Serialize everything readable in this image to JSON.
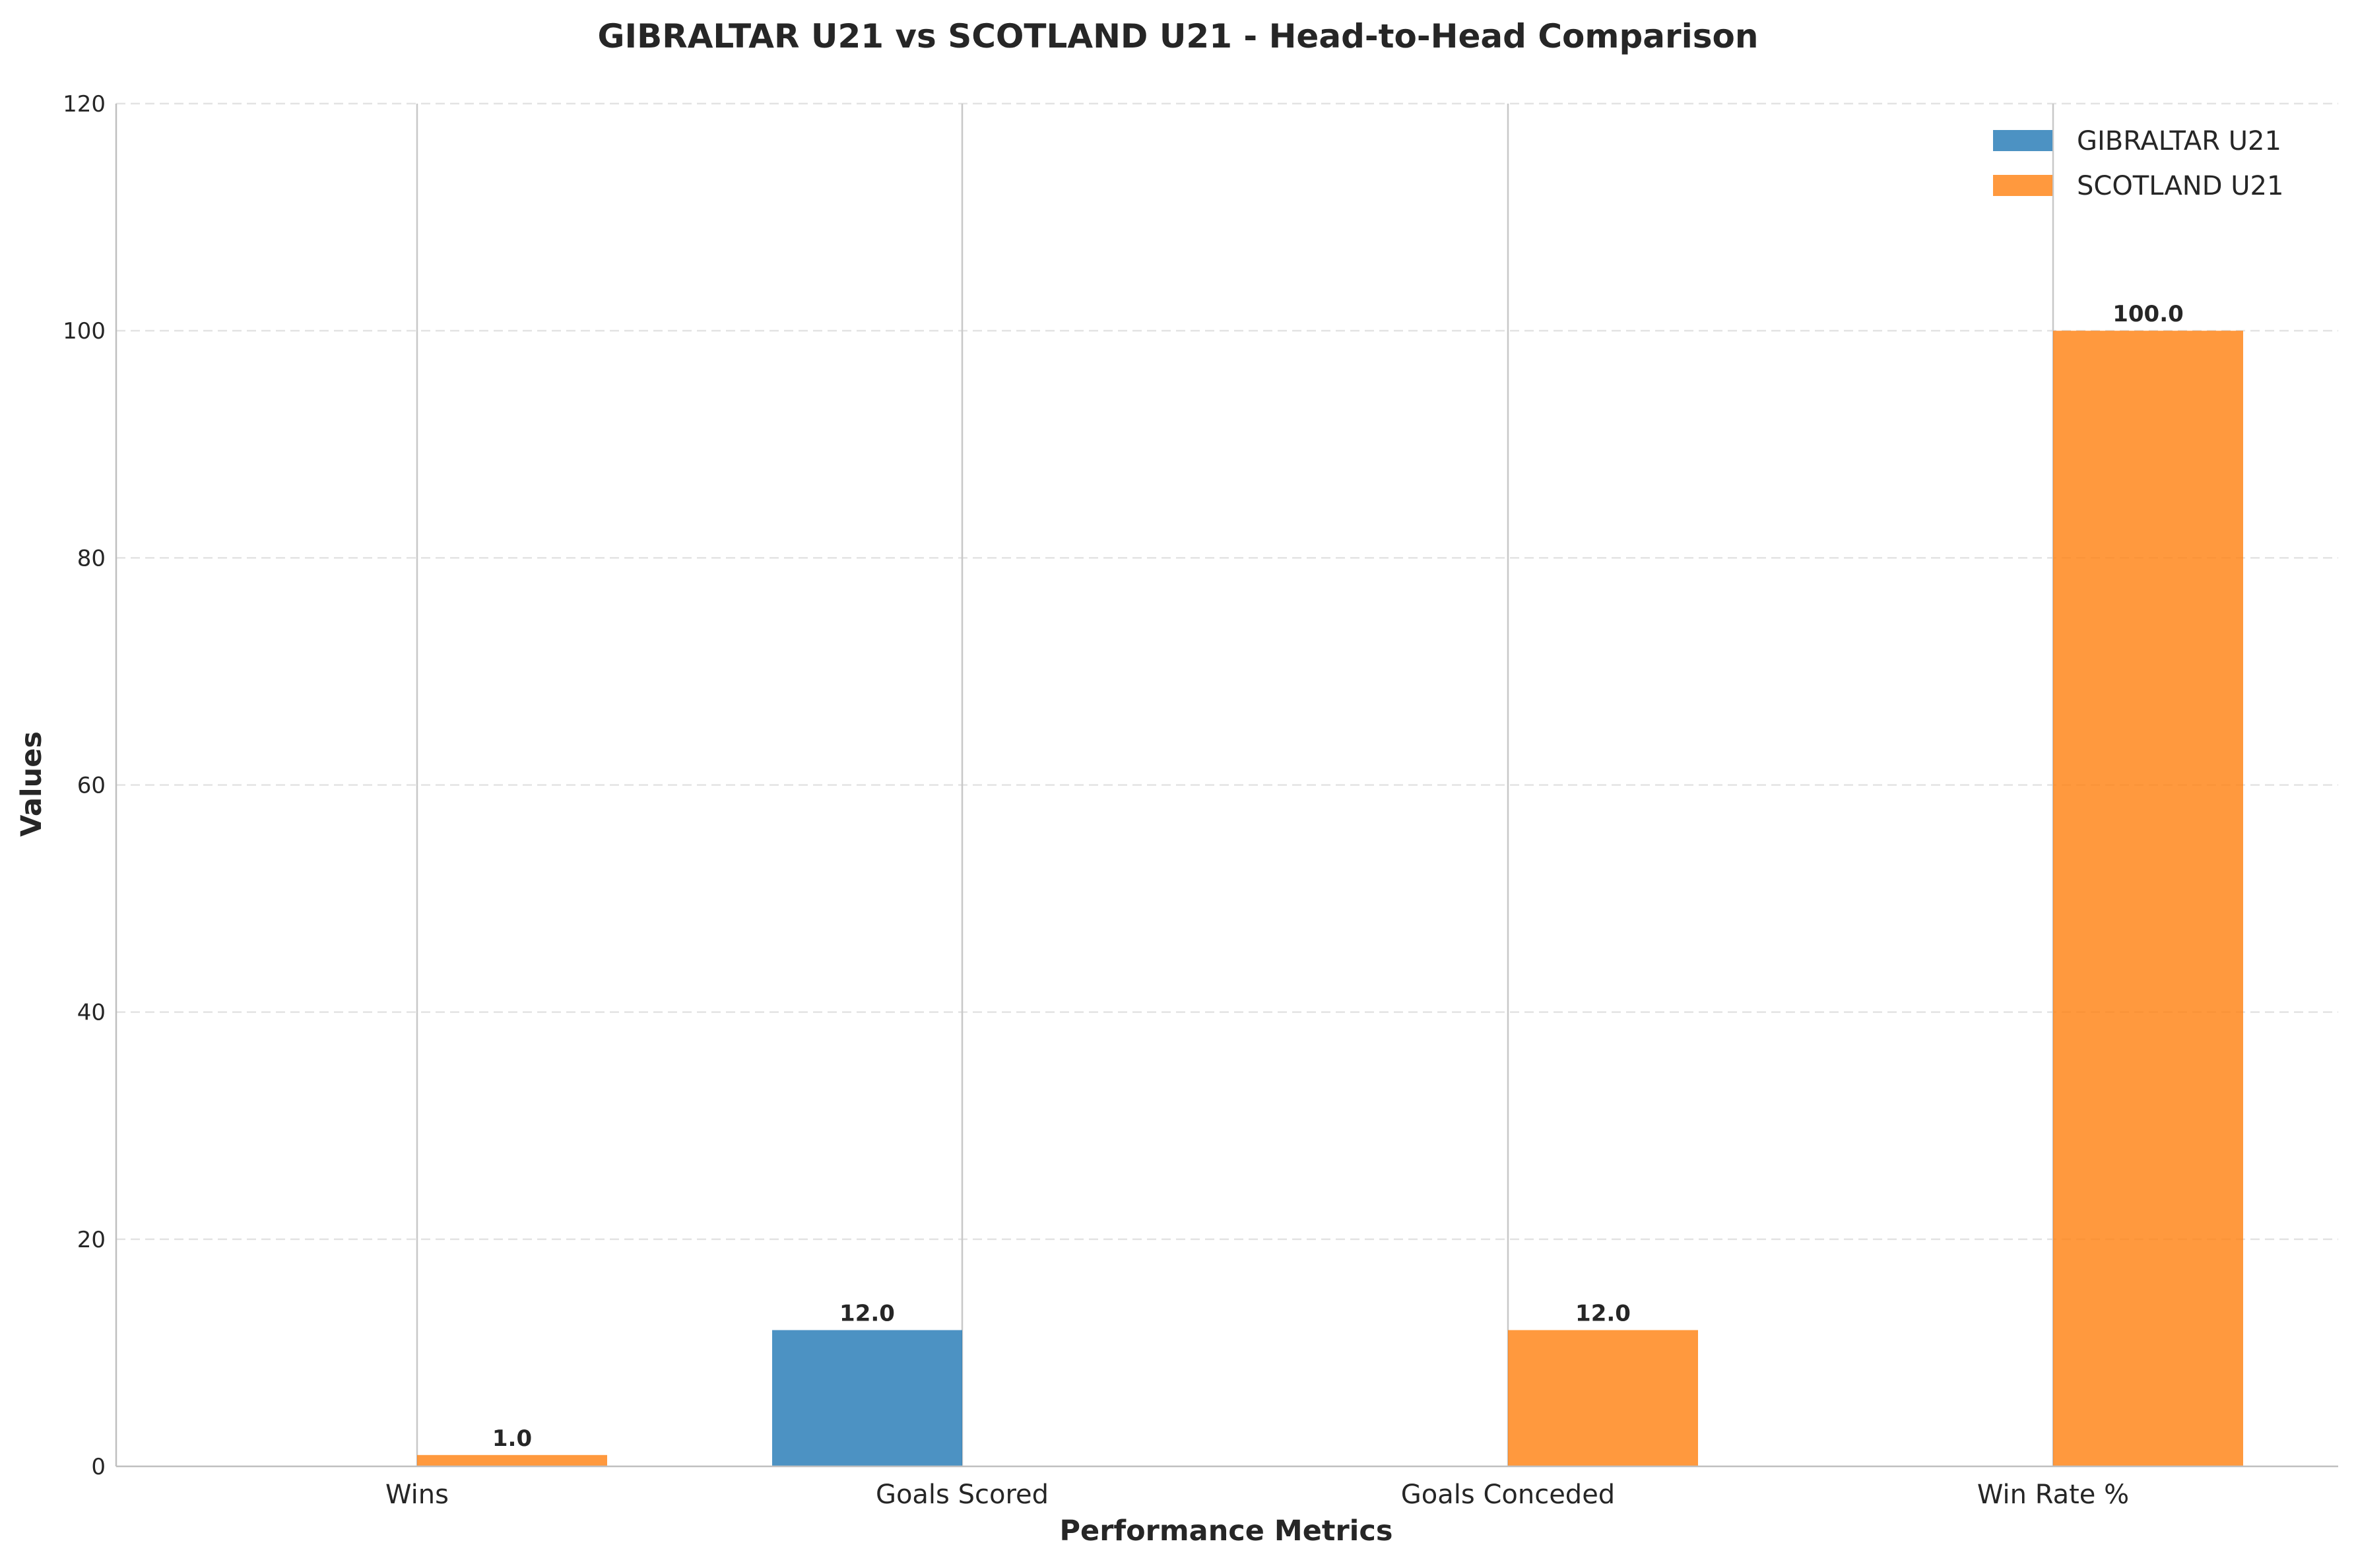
{
  "chart_data": {
    "type": "bar",
    "title": "GIBRALTAR U21 vs SCOTLAND U21 - Head-to-Head Comparison",
    "xlabel": "Performance Metrics",
    "ylabel": "Values",
    "categories": [
      "Wins",
      "Goals Scored",
      "Goals Conceded",
      "Win Rate %"
    ],
    "series": [
      {
        "name": "GIBRALTAR U21",
        "color": "#1f77b4",
        "values": [
          0.0,
          12.0,
          0.0,
          0.0
        ]
      },
      {
        "name": "SCOTLAND U21",
        "color": "#ff7f0e",
        "values": [
          1.0,
          0.0,
          12.0,
          100.0
        ]
      }
    ],
    "value_labels": [
      [
        "",
        "12.0",
        "",
        ""
      ],
      [
        "1.0",
        "",
        "12.0",
        "100.0"
      ]
    ],
    "yticks": [
      0,
      20,
      40,
      60,
      80,
      100,
      120
    ],
    "ylim": [
      0,
      120
    ],
    "grid": "y-dashed",
    "legend_position": "top-right"
  }
}
